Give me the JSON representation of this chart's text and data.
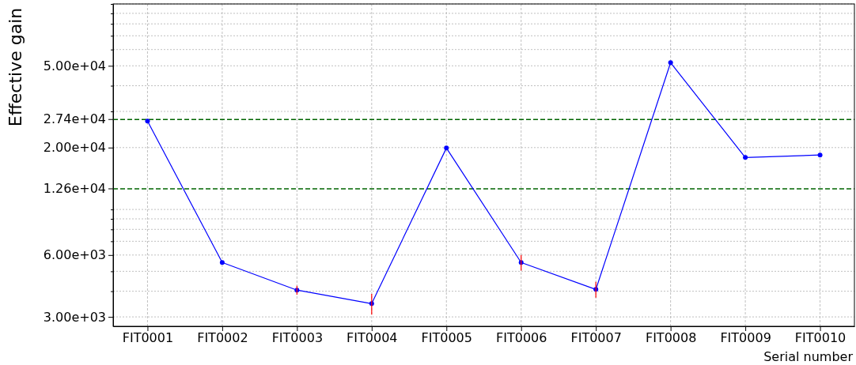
{
  "chart_data": {
    "type": "line",
    "xlabel": "Serial number",
    "ylabel": "Effective gain",
    "categories": [
      "FIT0001",
      "FIT0002",
      "FIT0003",
      "FIT0004",
      "FIT0005",
      "FIT0006",
      "FIT0007",
      "FIT0008",
      "FIT0009",
      "FIT0010"
    ],
    "series": [
      {
        "color": "#0000ff",
        "values": [
          26900,
          5520,
          4050,
          3480,
          19900,
          5520,
          4080,
          51800,
          17900,
          18400
        ],
        "errors": [
          null,
          null,
          200,
          400,
          null,
          480,
          360,
          null,
          null,
          null
        ]
      }
    ],
    "log": "y",
    "ylim": [
      2700,
      100000
    ],
    "yticks": [
      {
        "value": 3000,
        "label": "3.00e+03"
      },
      {
        "value": 4000,
        "label": null
      },
      {
        "value": 5000,
        "label": null
      },
      {
        "value": 6000,
        "label": "6.00e+03"
      },
      {
        "value": 7000,
        "label": null
      },
      {
        "value": 8000,
        "label": null
      },
      {
        "value": 9000,
        "label": null
      },
      {
        "value": 10000,
        "label": null
      },
      {
        "value": 20000,
        "label": "2.00e+04"
      },
      {
        "value": 30000,
        "label": null
      },
      {
        "value": 40000,
        "label": null
      },
      {
        "value": 50000,
        "label": "5.00e+04"
      },
      {
        "value": 60000,
        "label": null
      },
      {
        "value": 70000,
        "label": null
      },
      {
        "value": 80000,
        "label": null
      },
      {
        "value": 90000,
        "label": null
      },
      {
        "value": 100000,
        "label": null
      }
    ],
    "ref_lines": [
      {
        "axis": "y",
        "value": 27400,
        "label": "2.74e+04",
        "color": "#006400",
        "line_style": "dashed"
      },
      {
        "axis": "y",
        "value": 12600,
        "label": "1.26e+04",
        "color": "#006400",
        "line_style": "dashed"
      }
    ],
    "grid": true,
    "marker": "circle",
    "line_style": "solid"
  }
}
